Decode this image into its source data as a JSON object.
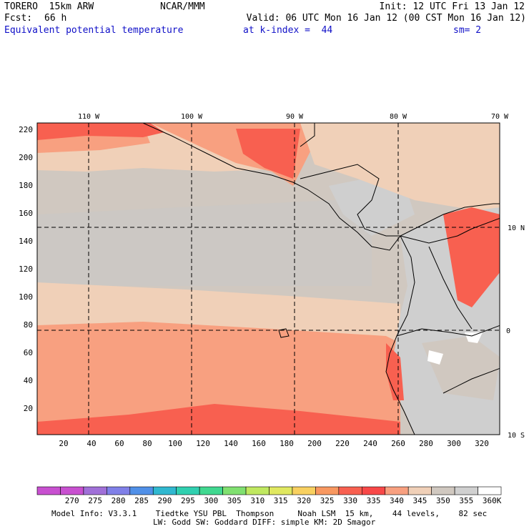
{
  "header": {
    "model": "TORERO  15km ARW",
    "org": "NCAR/MMM",
    "init": "Init: 12 UTC Fri 13 Jan 12",
    "fcst_label": "Fcst:",
    "fcst_value": "66 h",
    "valid": "Valid: 06 UTC Mon 16 Jan 12 (00 CST Mon 16 Jan 12)",
    "field": "Equivalent potential temperature",
    "level": "at k-index =  44",
    "smooth": "sm= 2"
  },
  "map": {
    "lon_labels": [
      "110 W",
      "100 W",
      "90 W",
      "80 W",
      "70 W"
    ],
    "lat_labels": [
      "10 N",
      "0",
      "10 S"
    ],
    "y_ticks": [
      "220",
      "200",
      "180",
      "160",
      "140",
      "120",
      "100",
      "80",
      "60",
      "40",
      "20"
    ],
    "x_ticks": [
      "20",
      "40",
      "60",
      "80",
      "100",
      "120",
      "140",
      "160",
      "180",
      "200",
      "220",
      "240",
      "260",
      "280",
      "300",
      "320"
    ]
  },
  "colorbar": {
    "labels": [
      "270",
      "275",
      "280",
      "285",
      "290",
      "295",
      "300",
      "305",
      "310",
      "315",
      "320",
      "325",
      "330",
      "335",
      "340",
      "345",
      "350",
      "355",
      "360"
    ],
    "unit": "K",
    "colors": [
      "#c850d0",
      "#a070d8",
      "#8080e8",
      "#5090e8",
      "#30b8d0",
      "#30d0b0",
      "#40d890",
      "#80e070",
      "#c0e860",
      "#e0e860",
      "#f8d060",
      "#f89860",
      "#f86050",
      "#f84848",
      "#f8a080",
      "#f0d0b8",
      "#d0c8c0",
      "#d0d0d0",
      "#ffffff"
    ]
  },
  "footer": {
    "line1": "Model Info: V3.3.1    Tiedtke YSU PBL  Thompson     Noah LSM  15 km,    44 levels,    82 sec",
    "line2": "LW: Godd SW: Goddard DIFF: simple KM: 2D Smagor"
  }
}
